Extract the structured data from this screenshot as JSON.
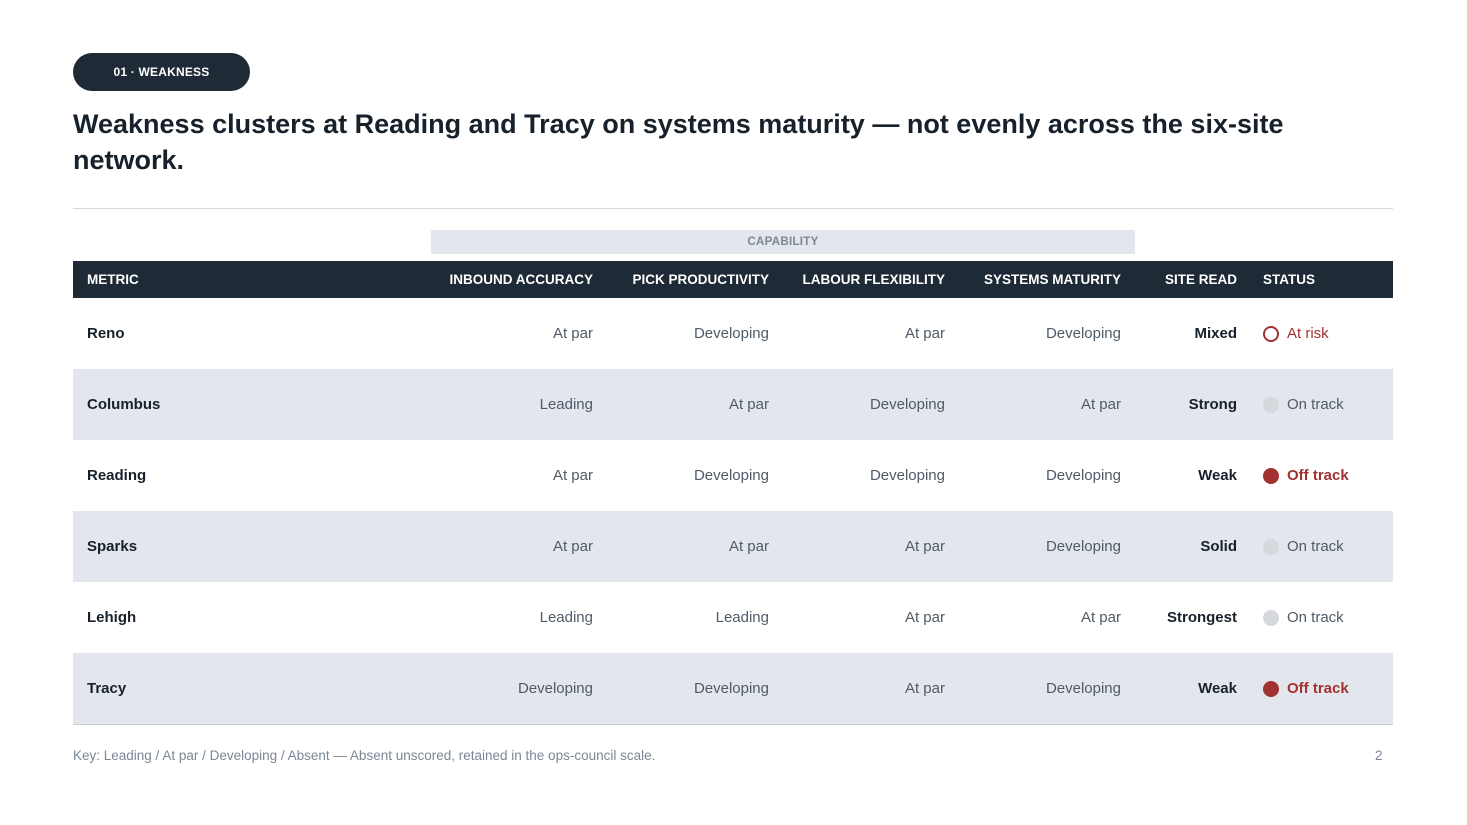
{
  "tag": "01 · WEAKNESS",
  "title": "Weakness clusters at Reading and Tracy on systems maturity — not evenly across the six-site network.",
  "group_header": "CAPABILITY",
  "columns": [
    "METRIC",
    "INBOUND ACCURACY",
    "PICK PRODUCTIVITY",
    "LABOUR FLEXIBILITY",
    "SYSTEMS MATURITY",
    "SITE READ",
    "STATUS"
  ],
  "rows": [
    {
      "site": "Reno",
      "inbound": "At par",
      "pick": "Developing",
      "labour": "At par",
      "systems": "Developing",
      "read": "Mixed",
      "status": "At risk",
      "status_icon": "ring-icon"
    },
    {
      "site": "Columbus",
      "inbound": "Leading",
      "pick": "At par",
      "labour": "Developing",
      "systems": "At par",
      "read": "Strong",
      "status": "On track",
      "status_icon": "grey-dot-icon"
    },
    {
      "site": "Reading",
      "inbound": "At par",
      "pick": "Developing",
      "labour": "Developing",
      "systems": "Developing",
      "read": "Weak",
      "status": "Off track",
      "status_icon": "red-dot-icon"
    },
    {
      "site": "Sparks",
      "inbound": "At par",
      "pick": "At par",
      "labour": "At par",
      "systems": "Developing",
      "read": "Solid",
      "status": "On track",
      "status_icon": "grey-dot-icon"
    },
    {
      "site": "Lehigh",
      "inbound": "Leading",
      "pick": "Leading",
      "labour": "At par",
      "systems": "At par",
      "read": "Strongest",
      "status": "On track",
      "status_icon": "grey-dot-icon"
    },
    {
      "site": "Tracy",
      "inbound": "Developing",
      "pick": "Developing",
      "labour": "At par",
      "systems": "Developing",
      "read": "Weak",
      "status": "Off track",
      "status_icon": "red-dot-icon"
    }
  ],
  "footer": "Key: Leading / At par / Developing / Absent — Absent unscored, retained in the ops-council scale.",
  "page_number": "2",
  "colors": {
    "header_bg": "#1e2a35",
    "alt_row": "#e3e7ed",
    "off_track": "#a23232",
    "on_track_dot": "#d5d9de"
  }
}
